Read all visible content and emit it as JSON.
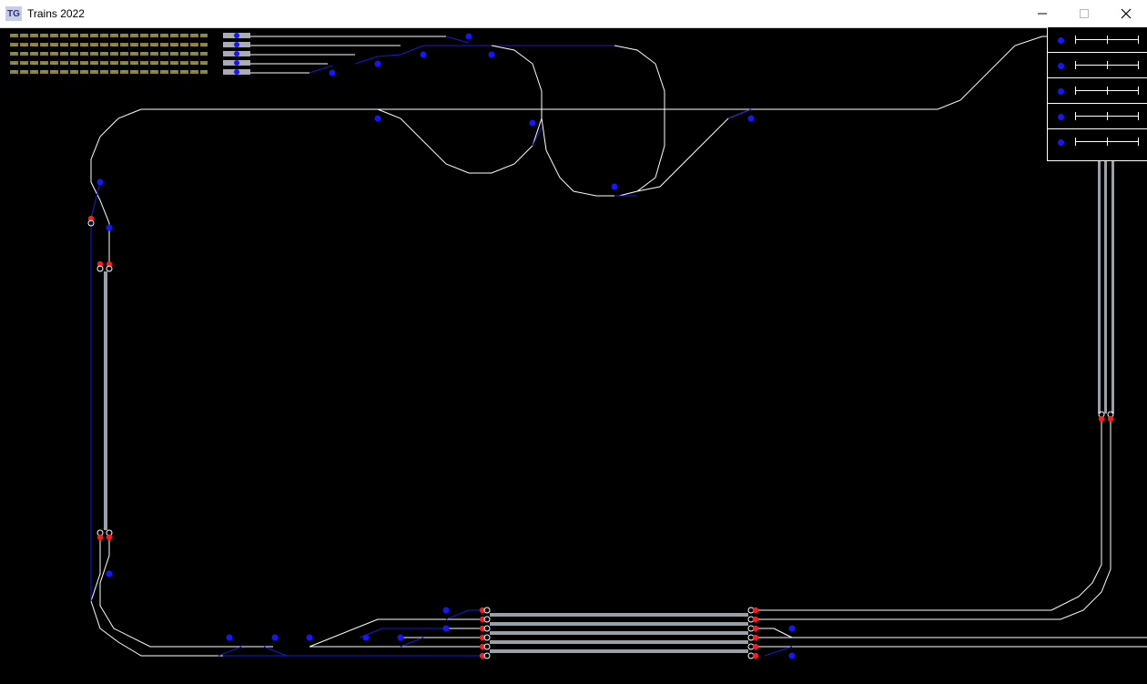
{
  "window": {
    "title": "Trains 2022",
    "icon_text": "TG",
    "controls": [
      "minimize",
      "maximize",
      "close"
    ]
  },
  "colors": {
    "background": "#000000",
    "track": "#ffffff",
    "rail_link": "#1a1acc",
    "switch_dot": "#1515ff",
    "signal_red": "#ff1a1a",
    "platform": "#9aa0aa",
    "train_car": "#c8a24a"
  },
  "speed_panel": {
    "rows": [
      {
        "indicator": "blue-dot",
        "level": 0.5
      },
      {
        "indicator": "blue-dot",
        "level": 0.5
      },
      {
        "indicator": "blue-dot",
        "level": 0.5
      },
      {
        "indicator": "blue-dot",
        "level": 0.5
      },
      {
        "indicator": "blue-dot",
        "level": 0.5
      }
    ]
  },
  "layout": {
    "trains": 5,
    "stations": [
      "left-platform",
      "bottom-platforms",
      "right-platform"
    ]
  }
}
